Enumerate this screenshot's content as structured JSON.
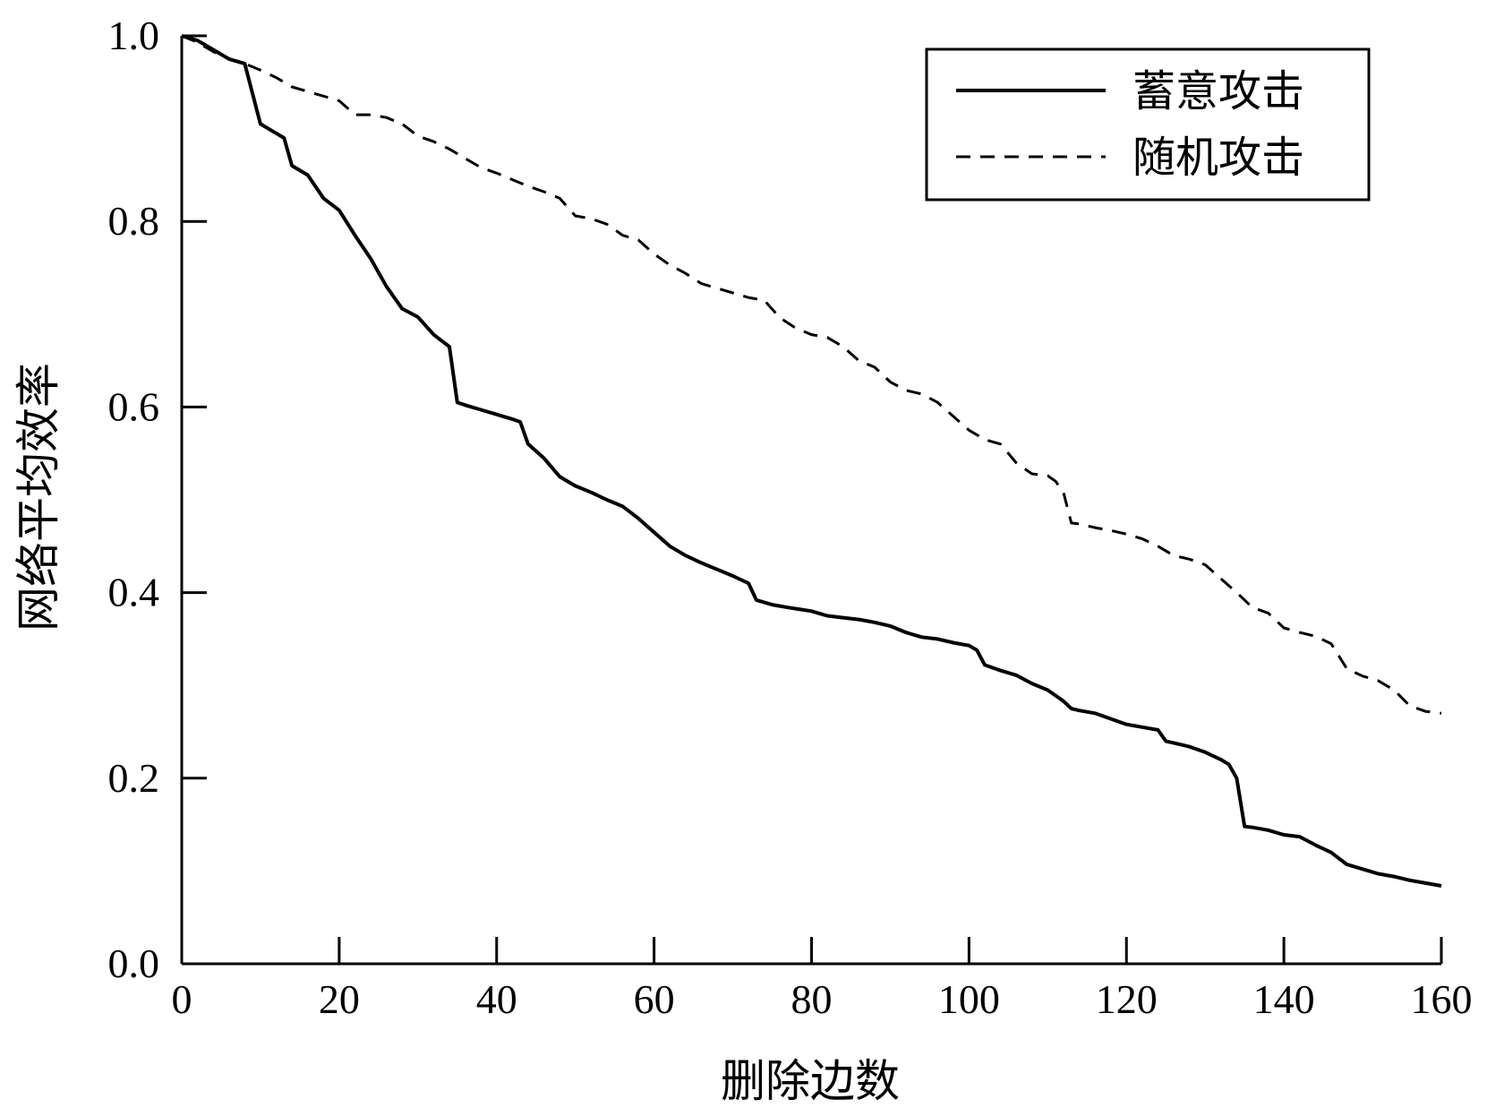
{
  "chart_data": {
    "type": "line",
    "title": "",
    "xlabel": "删除边数",
    "ylabel": "网络平均效率",
    "xlim": [
      0,
      160
    ],
    "ylim": [
      0,
      1.0
    ],
    "x_ticks": [
      0,
      20,
      40,
      60,
      80,
      100,
      120,
      140,
      160
    ],
    "x_tick_labels": [
      "0",
      "20",
      "40",
      "60",
      "80",
      "100",
      "120",
      "140",
      "160"
    ],
    "y_ticks": [
      0,
      0.2,
      0.4,
      0.6,
      0.8,
      1.0
    ],
    "y_tick_labels": [
      "0.0",
      "0.2",
      "0.4",
      "0.6",
      "0.8",
      "1.0"
    ],
    "grid": false,
    "legend_position": "top-right",
    "series": [
      {
        "name": "蓄意攻击",
        "style": "solid",
        "color": "#000000",
        "x": [
          0,
          2,
          4,
          6,
          8,
          10,
          12,
          13,
          14,
          16,
          18,
          20,
          22,
          24,
          26,
          28,
          30,
          32,
          34,
          35,
          36,
          38,
          40,
          42,
          43,
          44,
          46,
          48,
          50,
          52,
          54,
          56,
          58,
          60,
          62,
          64,
          66,
          68,
          70,
          72,
          73,
          75,
          77,
          80,
          82,
          84,
          86,
          88,
          90,
          92,
          94,
          96,
          98,
          100,
          101,
          102,
          104,
          106,
          108,
          110,
          112,
          113,
          114,
          116,
          118,
          120,
          122,
          124,
          125,
          126,
          128,
          130,
          132,
          133,
          134,
          135,
          136,
          138,
          140,
          142,
          144,
          146,
          148,
          150,
          152,
          154,
          156,
          158,
          160
        ],
        "values": [
          1.0,
          0.995,
          0.985,
          0.975,
          0.97,
          0.905,
          0.895,
          0.89,
          0.86,
          0.85,
          0.825,
          0.812,
          0.785,
          0.76,
          0.73,
          0.706,
          0.697,
          0.678,
          0.665,
          0.605,
          0.602,
          0.597,
          0.592,
          0.587,
          0.584,
          0.56,
          0.545,
          0.525,
          0.515,
          0.508,
          0.5,
          0.493,
          0.48,
          0.465,
          0.45,
          0.44,
          0.432,
          0.425,
          0.418,
          0.41,
          0.392,
          0.387,
          0.384,
          0.38,
          0.375,
          0.373,
          0.371,
          0.368,
          0.364,
          0.357,
          0.352,
          0.35,
          0.346,
          0.343,
          0.338,
          0.322,
          0.316,
          0.311,
          0.302,
          0.295,
          0.283,
          0.275,
          0.273,
          0.27,
          0.264,
          0.258,
          0.255,
          0.252,
          0.24,
          0.238,
          0.234,
          0.228,
          0.22,
          0.215,
          0.2,
          0.148,
          0.147,
          0.144,
          0.139,
          0.137,
          0.128,
          0.12,
          0.107,
          0.102,
          0.097,
          0.094,
          0.09,
          0.087,
          0.084
        ]
      },
      {
        "name": "随机攻击",
        "style": "dashed",
        "color": "#000000",
        "x": [
          0,
          2,
          4,
          6,
          8,
          10,
          12,
          14,
          16,
          18,
          20,
          22,
          24,
          26,
          28,
          30,
          32,
          34,
          36,
          38,
          40,
          42,
          44,
          46,
          48,
          50,
          52,
          54,
          56,
          58,
          60,
          62,
          64,
          66,
          68,
          70,
          72,
          74,
          76,
          78,
          80,
          82,
          84,
          86,
          88,
          90,
          92,
          94,
          96,
          98,
          100,
          102,
          104,
          106,
          108,
          110,
          111,
          112,
          113,
          114,
          116,
          118,
          120,
          122,
          124,
          126,
          128,
          130,
          132,
          134,
          136,
          138,
          140,
          142,
          144,
          146,
          148,
          150,
          152,
          154,
          156,
          158,
          160
        ],
        "values": [
          1.0,
          0.993,
          0.983,
          0.975,
          0.97,
          0.963,
          0.955,
          0.945,
          0.94,
          0.935,
          0.93,
          0.915,
          0.915,
          0.912,
          0.905,
          0.892,
          0.886,
          0.878,
          0.868,
          0.858,
          0.852,
          0.845,
          0.838,
          0.832,
          0.825,
          0.806,
          0.803,
          0.797,
          0.785,
          0.78,
          0.765,
          0.753,
          0.744,
          0.733,
          0.728,
          0.723,
          0.718,
          0.715,
          0.696,
          0.685,
          0.678,
          0.675,
          0.665,
          0.65,
          0.643,
          0.627,
          0.618,
          0.614,
          0.605,
          0.59,
          0.575,
          0.565,
          0.56,
          0.54,
          0.528,
          0.526,
          0.52,
          0.508,
          0.475,
          0.474,
          0.47,
          0.467,
          0.463,
          0.458,
          0.45,
          0.44,
          0.436,
          0.43,
          0.415,
          0.4,
          0.384,
          0.378,
          0.362,
          0.357,
          0.353,
          0.345,
          0.318,
          0.31,
          0.305,
          0.295,
          0.278,
          0.272,
          0.27
        ]
      }
    ]
  }
}
